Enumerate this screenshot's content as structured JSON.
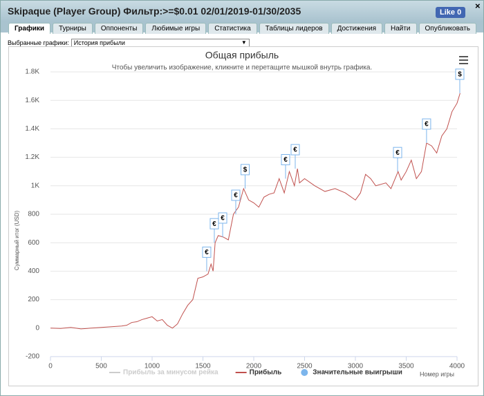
{
  "header": {
    "title": "Skipaque (Player Group) Фильтр:>=$0.01 02/01/2019-01/30/2035",
    "like": "Like 0",
    "close": "×"
  },
  "tabs": [
    "Графики",
    "Турниры",
    "Оппоненты",
    "Любимые игры",
    "Статистика",
    "Таблицы лидеров",
    "Достижения",
    "Найти",
    "Опубликовать"
  ],
  "selector": {
    "label": "Выбранные графики:",
    "value": "История прибыли"
  },
  "chart_data": {
    "type": "line",
    "title": "Общая прибыль",
    "subtitle": "Чтобы увеличить изображение, кликните и перетащите мышкой внутрь графика.",
    "y_label": "Суммарный итог (USD)",
    "x_label": "Номер игры",
    "grid": true,
    "xlim": [
      0,
      4000
    ],
    "xticks": [
      0,
      500,
      1000,
      1500,
      2000,
      2500,
      3000,
      3500,
      4000
    ],
    "ylim": [
      -200,
      1800
    ],
    "yticks": [
      -200,
      0,
      200,
      400,
      600,
      800,
      {
        "value": 1000,
        "label": "1K"
      },
      {
        "value": 1200,
        "label": "1.2K"
      },
      {
        "value": 1400,
        "label": "1.4K"
      },
      {
        "value": 1600,
        "label": "1.6K"
      },
      {
        "value": 1800,
        "label": "1.8K"
      }
    ],
    "x": [
      0,
      100,
      200,
      300,
      400,
      500,
      600,
      700,
      750,
      800,
      850,
      900,
      950,
      1000,
      1050,
      1100,
      1150,
      1200,
      1250,
      1300,
      1350,
      1400,
      1450,
      1500,
      1550,
      1580,
      1600,
      1620,
      1650,
      1700,
      1750,
      1800,
      1850,
      1900,
      1950,
      2000,
      2050,
      2100,
      2150,
      2200,
      2250,
      2300,
      2350,
      2400,
      2430,
      2450,
      2500,
      2600,
      2700,
      2800,
      2900,
      3000,
      3050,
      3100,
      3150,
      3200,
      3300,
      3350,
      3420,
      3450,
      3500,
      3550,
      3600,
      3650,
      3700,
      3750,
      3800,
      3850,
      3900,
      3950,
      4000,
      4030
    ],
    "series": [
      {
        "name": "Прибыль",
        "color": "#c0504d",
        "values": [
          0,
          -2,
          5,
          -5,
          0,
          5,
          10,
          15,
          20,
          40,
          45,
          60,
          70,
          80,
          50,
          60,
          20,
          0,
          30,
          100,
          160,
          200,
          350,
          360,
          380,
          450,
          400,
          600,
          650,
          640,
          620,
          800,
          850,
          980,
          900,
          880,
          850,
          920,
          940,
          950,
          1050,
          950,
          1100,
          1000,
          1120,
          1020,
          1050,
          1000,
          960,
          980,
          950,
          900,
          950,
          1080,
          1050,
          1000,
          1020,
          980,
          1100,
          1040,
          1100,
          1180,
          1050,
          1100,
          1300,
          1280,
          1230,
          1350,
          1400,
          1520,
          1580,
          1650
        ]
      }
    ],
    "legend": [
      {
        "name": "Прибыль за минусом рейка",
        "color": "#cccccc"
      },
      {
        "name": "Прибыль",
        "color": "#c0504d"
      },
      {
        "name": "Значительные выигрыши",
        "color": "#7cb5ec"
      }
    ],
    "flags": [
      {
        "x": 1537,
        "y": 400,
        "label": "€"
      },
      {
        "x": 1612,
        "y": 600,
        "label": "€"
      },
      {
        "x": 1694,
        "y": 640,
        "label": "€"
      },
      {
        "x": 1823,
        "y": 800,
        "label": "€"
      },
      {
        "x": 1915,
        "y": 980,
        "label": "$"
      },
      {
        "x": 2313,
        "y": 1050,
        "label": "€"
      },
      {
        "x": 2408,
        "y": 1120,
        "label": "€"
      },
      {
        "x": 3415,
        "y": 1100,
        "label": "€"
      },
      {
        "x": 3700,
        "y": 1300,
        "label": "€"
      },
      {
        "x": 4027,
        "y": 1650,
        "label": "$"
      }
    ]
  }
}
